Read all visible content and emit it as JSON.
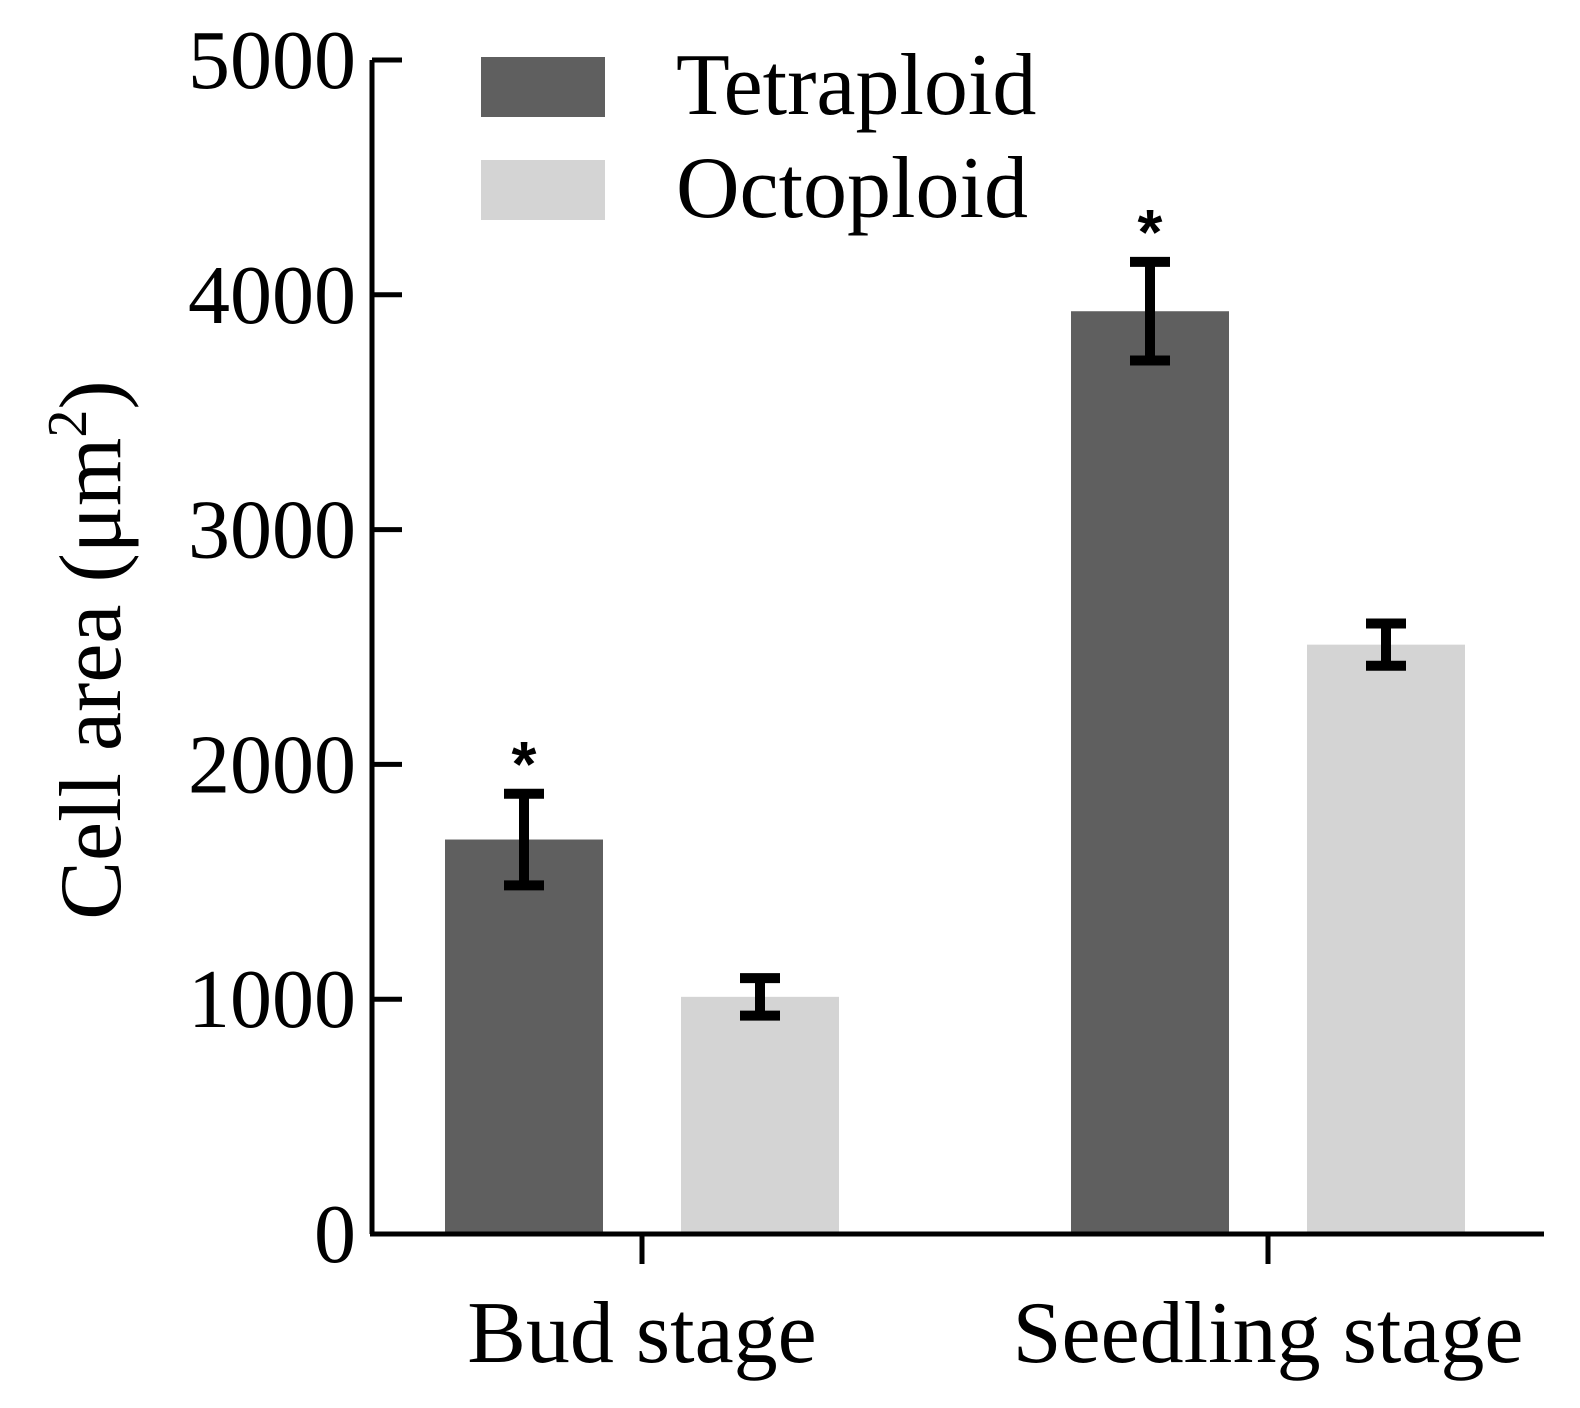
{
  "chart_data": {
    "type": "bar",
    "title": "",
    "xlabel": "",
    "ylabel": "Cell area (μm",
    "ylabel_superscript": "2",
    "ylabel_close": ")",
    "ylim": [
      0,
      5000
    ],
    "yticks": [
      0,
      1000,
      2000,
      3000,
      4000,
      5000
    ],
    "ytick_labels": [
      "0",
      "1000",
      "2000",
      "3000",
      "4000",
      "5000"
    ],
    "categories": [
      "Bud stage",
      "Seedling stage"
    ],
    "series": [
      {
        "name": "Tetraploid",
        "color": "#5f5f5f",
        "values": [
          1680,
          3930
        ],
        "errors": [
          195,
          210
        ],
        "significance": [
          "*",
          "*"
        ]
      },
      {
        "name": "Octoploid",
        "color": "#d4d4d4",
        "values": [
          1010,
          2510
        ],
        "errors": [
          80,
          90
        ],
        "significance": [
          "",
          ""
        ]
      }
    ],
    "legend_position": "top-left",
    "grid": false
  }
}
